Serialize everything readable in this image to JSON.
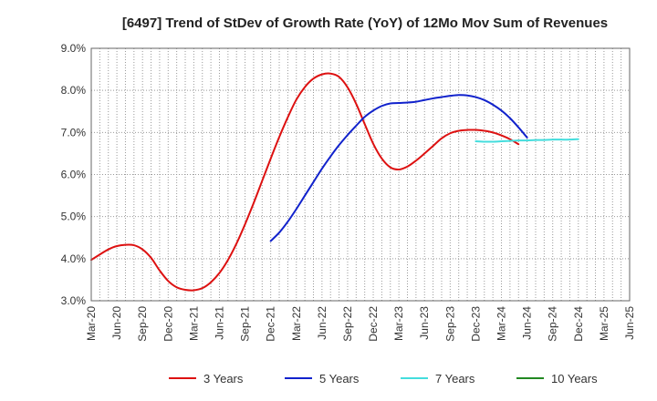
{
  "chart_data": {
    "type": "line",
    "title": "[6497]  Trend of StDev of Growth Rate (YoY) of 12Mo Mov Sum of Revenues",
    "xlabel": "",
    "ylabel": "",
    "ylim": [
      3.0,
      9.0
    ],
    "yticks": [
      "3.0%",
      "4.0%",
      "5.0%",
      "6.0%",
      "7.0%",
      "8.0%",
      "9.0%"
    ],
    "ytick_values": [
      3,
      4,
      5,
      6,
      7,
      8,
      9
    ],
    "xtick_labels": [
      "Mar-20",
      "Jun-20",
      "Sep-20",
      "Dec-20",
      "Mar-21",
      "Jun-21",
      "Sep-21",
      "Dec-21",
      "Mar-22",
      "Jun-22",
      "Sep-22",
      "Dec-22",
      "Mar-23",
      "Jun-23",
      "Sep-23",
      "Dec-23",
      "Mar-24",
      "Jun-24",
      "Sep-24",
      "Dec-24",
      "Mar-25",
      "Jun-25"
    ],
    "grid": true,
    "legend_position": "bottom",
    "series": [
      {
        "name": "3 Years",
        "color": "#dd1111",
        "start_index": 0,
        "values": [
          3.97,
          4.1,
          4.22,
          4.3,
          4.33,
          4.32,
          4.22,
          4.02,
          3.72,
          3.47,
          3.32,
          3.26,
          3.25,
          3.3,
          3.44,
          3.66,
          3.97,
          4.36,
          4.82,
          5.32,
          5.85,
          6.38,
          6.89,
          7.36,
          7.78,
          8.08,
          8.28,
          8.38,
          8.4,
          8.32,
          8.07,
          7.68,
          7.2,
          6.73,
          6.38,
          6.17,
          6.12,
          6.19,
          6.33,
          6.5,
          6.68,
          6.86,
          6.98,
          7.04,
          7.06,
          7.06,
          7.04,
          7.0,
          6.93,
          6.84,
          6.72
        ]
      },
      {
        "name": "5 Years",
        "color": "#1122cc",
        "start_index": 21,
        "values": [
          4.42,
          4.62,
          4.88,
          5.18,
          5.5,
          5.82,
          6.14,
          6.43,
          6.7,
          6.94,
          7.16,
          7.37,
          7.52,
          7.63,
          7.69,
          7.7,
          7.71,
          7.73,
          7.77,
          7.81,
          7.84,
          7.87,
          7.89,
          7.88,
          7.84,
          7.77,
          7.66,
          7.52,
          7.34,
          7.12,
          6.88
        ]
      },
      {
        "name": "7 Years",
        "color": "#44dddd",
        "start_index": 45,
        "values": [
          6.79,
          6.78,
          6.78,
          6.79,
          6.8,
          6.81,
          6.81,
          6.82,
          6.82,
          6.83,
          6.83,
          6.83,
          6.84
        ]
      },
      {
        "name": "10 Years",
        "color": "#228822",
        "start_index": null,
        "values": []
      }
    ]
  }
}
